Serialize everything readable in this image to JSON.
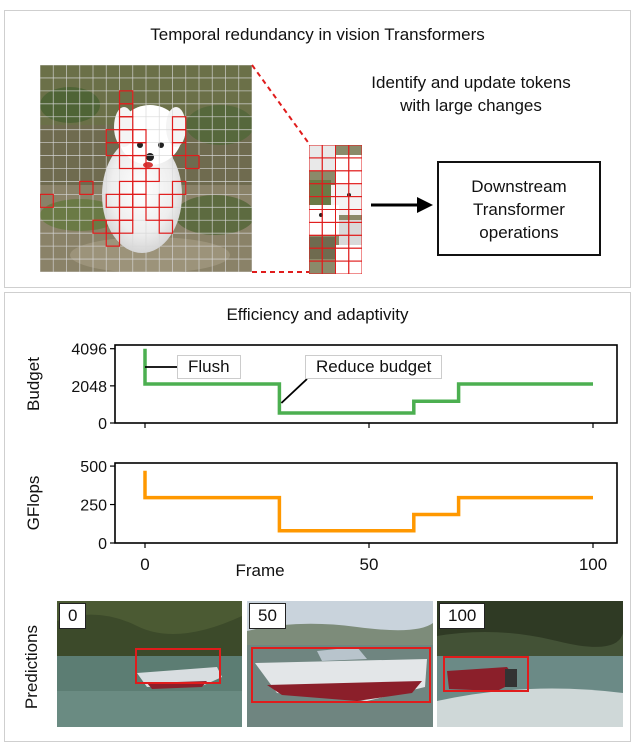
{
  "top_panel": {
    "title": "Temporal redundancy in vision Transformers",
    "description_line1": "Identify and update tokens",
    "description_line2": "with large changes",
    "box_line1": "Downstream",
    "box_line2": "Transformer",
    "box_line3": "operations",
    "colors": {
      "grid_line": "#d8d8d8",
      "token_highlight": "#e01c1c",
      "arrow": "#000000"
    }
  },
  "bottom_panel": {
    "title": "Efficiency and adaptivity",
    "annotations": {
      "flush": "Flush",
      "reduce_budget": "Reduce budget"
    },
    "predictions_label": "Predictions",
    "predictions": [
      {
        "frame_label": "0"
      },
      {
        "frame_label": "50"
      },
      {
        "frame_label": "100"
      }
    ]
  },
  "chart_data": [
    {
      "type": "line",
      "step": true,
      "ylabel": "Budget",
      "xlabel": "",
      "xlim": [
        0,
        100
      ],
      "ylim": [
        0,
        4300
      ],
      "yticks": [
        "0",
        "2048",
        "4096"
      ],
      "ytick_values": [
        0,
        2048,
        4096
      ],
      "color": "#4caf50",
      "x": [
        0,
        0,
        30,
        30,
        60,
        60,
        70,
        70,
        100
      ],
      "y": [
        4096,
        2150,
        2150,
        550,
        550,
        1200,
        1200,
        2150,
        2150
      ]
    },
    {
      "type": "line",
      "step": true,
      "ylabel": "GFlops",
      "xlabel": "Frame",
      "xlim": [
        0,
        100
      ],
      "ylim": [
        0,
        520
      ],
      "yticks": [
        "0",
        "250",
        "500"
      ],
      "ytick_values": [
        0,
        250,
        500
      ],
      "xticks": [
        "0",
        "50",
        "100"
      ],
      "xtick_values": [
        0,
        50,
        100
      ],
      "color": "#ff9800",
      "x": [
        0,
        0,
        30,
        30,
        60,
        60,
        70,
        70,
        100
      ],
      "y": [
        470,
        295,
        295,
        80,
        80,
        185,
        185,
        295,
        295
      ]
    }
  ]
}
